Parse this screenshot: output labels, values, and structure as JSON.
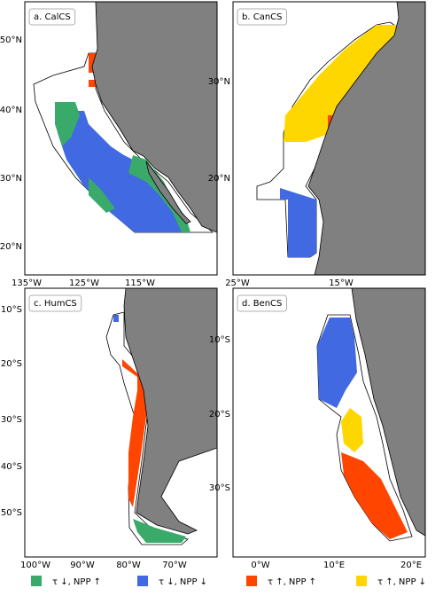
{
  "panels": [
    {
      "label": "a. CalCS",
      "xticks": [
        "135°W",
        "125°W",
        "115°W"
      ],
      "yticks": [
        "50°N",
        "40°N",
        "30°N",
        "20°N"
      ]
    },
    {
      "label": "b. CanCS",
      "xticks": [
        "25°W",
        "15°W"
      ],
      "yticks": [
        "30°N",
        "20°N"
      ]
    },
    {
      "label": "c. HumCS",
      "xticks": [
        "100°W",
        "90°W",
        "80°W",
        "70°W"
      ],
      "yticks": [
        "10°S",
        "20°S",
        "30°S",
        "40°S",
        "50°S"
      ]
    },
    {
      "label": "d. BenCS",
      "xticks": [
        "0°W",
        "10°E",
        "20°E"
      ],
      "yticks": [
        "10°S",
        "20°S",
        "30°S"
      ]
    }
  ],
  "legend": [
    {
      "label": "τ ↓, NPP ↑",
      "color": "#3aaa6b"
    },
    {
      "label": "τ ↓, NPP ↓",
      "color": "#4169e1"
    },
    {
      "label": "τ ↑, NPP ↑",
      "color": "#ff4500"
    },
    {
      "label": "τ ↑, NPP ↓",
      "color": "#ffd700"
    }
  ]
}
